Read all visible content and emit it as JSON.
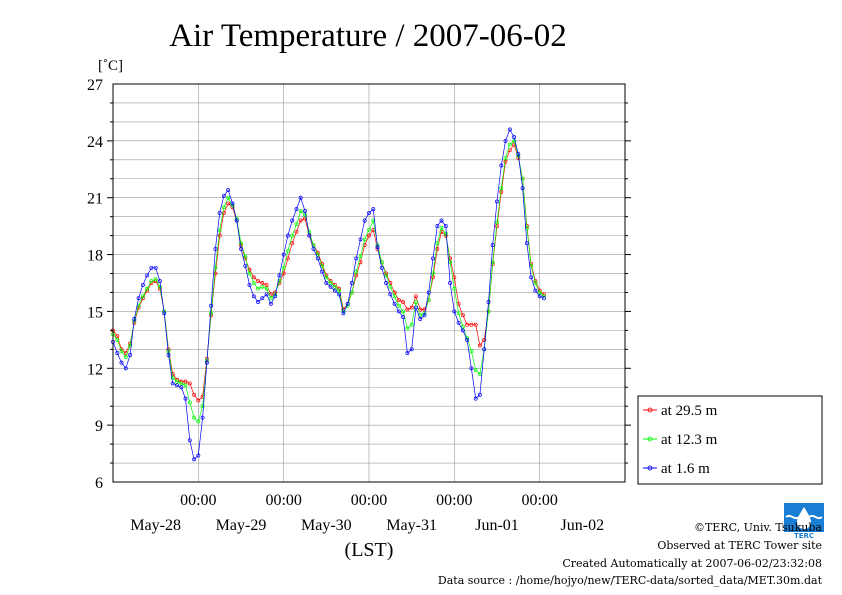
{
  "chart_data": {
    "type": "line",
    "title": "Air Temperature / 2007-06-02",
    "ylabel": "[˚C]",
    "xlabel": "(LST)",
    "ylim": [
      6,
      27
    ],
    "yticks": [
      6,
      9,
      12,
      15,
      18,
      21,
      24,
      27
    ],
    "xlim": [
      0,
      6
    ],
    "day_ticks": [
      {
        "x": 1,
        "time": "00:00"
      },
      {
        "x": 2,
        "time": "00:00"
      },
      {
        "x": 3,
        "time": "00:00"
      },
      {
        "x": 4,
        "time": "00:00"
      },
      {
        "x": 5,
        "time": "00:00"
      }
    ],
    "day_labels": [
      {
        "x": 0.5,
        "label": "May-28"
      },
      {
        "x": 1.5,
        "label": "May-29"
      },
      {
        "x": 2.5,
        "label": "May-30"
      },
      {
        "x": 3.5,
        "label": "May-31"
      },
      {
        "x": 4.5,
        "label": "Jun-01"
      },
      {
        "x": 5.5,
        "label": "Jun-02"
      }
    ],
    "grid": true,
    "legend_position": "right",
    "series": [
      {
        "name": "at 29.5 m",
        "color": "#ff0000",
        "points": [
          [
            0.0,
            14.0
          ],
          [
            0.05,
            13.7
          ],
          [
            0.1,
            13.0
          ],
          [
            0.15,
            12.8
          ],
          [
            0.2,
            13.3
          ],
          [
            0.25,
            14.4
          ],
          [
            0.3,
            15.2
          ],
          [
            0.35,
            15.7
          ],
          [
            0.4,
            16.1
          ],
          [
            0.45,
            16.5
          ],
          [
            0.5,
            16.6
          ],
          [
            0.55,
            16.2
          ],
          [
            0.6,
            15.0
          ],
          [
            0.65,
            13.0
          ],
          [
            0.7,
            11.7
          ],
          [
            0.75,
            11.4
          ],
          [
            0.8,
            11.3
          ],
          [
            0.85,
            11.3
          ],
          [
            0.9,
            11.2
          ],
          [
            0.95,
            10.6
          ],
          [
            1.0,
            10.3
          ],
          [
            1.05,
            10.5
          ],
          [
            1.1,
            12.5
          ],
          [
            1.15,
            14.8
          ],
          [
            1.2,
            17.0
          ],
          [
            1.25,
            19.0
          ],
          [
            1.3,
            20.2
          ],
          [
            1.35,
            20.7
          ],
          [
            1.4,
            20.5
          ],
          [
            1.45,
            19.8
          ],
          [
            1.5,
            18.5
          ],
          [
            1.55,
            17.8
          ],
          [
            1.6,
            17.2
          ],
          [
            1.65,
            16.8
          ],
          [
            1.7,
            16.6
          ],
          [
            1.75,
            16.5
          ],
          [
            1.8,
            16.4
          ],
          [
            1.85,
            15.9
          ],
          [
            1.9,
            16.0
          ],
          [
            1.95,
            16.5
          ],
          [
            2.0,
            17.0
          ],
          [
            2.05,
            17.8
          ],
          [
            2.1,
            18.6
          ],
          [
            2.15,
            19.2
          ],
          [
            2.2,
            19.8
          ],
          [
            2.25,
            19.9
          ],
          [
            2.3,
            19.0
          ],
          [
            2.35,
            18.5
          ],
          [
            2.4,
            18.1
          ],
          [
            2.45,
            17.5
          ],
          [
            2.5,
            16.9
          ],
          [
            2.55,
            16.6
          ],
          [
            2.6,
            16.4
          ],
          [
            2.65,
            16.2
          ],
          [
            2.7,
            15.1
          ],
          [
            2.75,
            15.4
          ],
          [
            2.8,
            16.0
          ],
          [
            2.85,
            16.9
          ],
          [
            2.9,
            17.6
          ],
          [
            2.95,
            18.5
          ],
          [
            3.0,
            19.0
          ],
          [
            3.05,
            19.3
          ],
          [
            3.1,
            18.3
          ],
          [
            3.15,
            17.6
          ],
          [
            3.2,
            17.0
          ],
          [
            3.25,
            16.5
          ],
          [
            3.3,
            16.0
          ],
          [
            3.35,
            15.6
          ],
          [
            3.4,
            15.5
          ],
          [
            3.45,
            15.1
          ],
          [
            3.5,
            15.2
          ],
          [
            3.55,
            15.8
          ],
          [
            3.6,
            15.1
          ],
          [
            3.65,
            15.1
          ],
          [
            3.7,
            15.6
          ],
          [
            3.75,
            16.8
          ],
          [
            3.8,
            18.3
          ],
          [
            3.85,
            19.2
          ],
          [
            3.9,
            19.0
          ],
          [
            3.95,
            17.8
          ],
          [
            4.0,
            16.8
          ],
          [
            4.05,
            15.4
          ],
          [
            4.1,
            14.8
          ],
          [
            4.15,
            14.3
          ],
          [
            4.2,
            14.3
          ],
          [
            4.25,
            14.3
          ],
          [
            4.3,
            13.2
          ],
          [
            4.35,
            13.5
          ],
          [
            4.4,
            15.0
          ],
          [
            4.45,
            17.5
          ],
          [
            4.5,
            19.5
          ],
          [
            4.55,
            21.3
          ],
          [
            4.6,
            22.9
          ],
          [
            4.65,
            23.5
          ],
          [
            4.7,
            23.8
          ],
          [
            4.75,
            23.1
          ],
          [
            4.8,
            22.0
          ],
          [
            4.85,
            19.5
          ],
          [
            4.9,
            17.5
          ],
          [
            4.95,
            16.6
          ],
          [
            5.0,
            16.1
          ],
          [
            5.05,
            15.9
          ]
        ]
      },
      {
        "name": "at 12.3 m",
        "color": "#00ff00",
        "points": [
          [
            0.0,
            13.8
          ],
          [
            0.05,
            13.5
          ],
          [
            0.1,
            12.9
          ],
          [
            0.15,
            12.6
          ],
          [
            0.2,
            13.2
          ],
          [
            0.25,
            14.5
          ],
          [
            0.3,
            15.3
          ],
          [
            0.35,
            15.8
          ],
          [
            0.4,
            16.2
          ],
          [
            0.45,
            16.6
          ],
          [
            0.5,
            16.7
          ],
          [
            0.55,
            16.3
          ],
          [
            0.6,
            15.0
          ],
          [
            0.65,
            12.9
          ],
          [
            0.7,
            11.5
          ],
          [
            0.75,
            11.3
          ],
          [
            0.8,
            11.2
          ],
          [
            0.85,
            11.1
          ],
          [
            0.9,
            10.2
          ],
          [
            0.95,
            9.4
          ],
          [
            1.0,
            9.2
          ],
          [
            1.05,
            10.0
          ],
          [
            1.1,
            12.4
          ],
          [
            1.15,
            14.9
          ],
          [
            1.2,
            17.3
          ],
          [
            1.25,
            19.3
          ],
          [
            1.3,
            20.5
          ],
          [
            1.35,
            21.0
          ],
          [
            1.4,
            20.6
          ],
          [
            1.45,
            19.9
          ],
          [
            1.5,
            18.6
          ],
          [
            1.55,
            17.9
          ],
          [
            1.6,
            17.0
          ],
          [
            1.65,
            16.5
          ],
          [
            1.7,
            16.2
          ],
          [
            1.75,
            16.3
          ],
          [
            1.8,
            16.2
          ],
          [
            1.85,
            15.7
          ],
          [
            1.9,
            15.9
          ],
          [
            1.95,
            16.6
          ],
          [
            2.0,
            17.3
          ],
          [
            2.05,
            18.2
          ],
          [
            2.1,
            19.0
          ],
          [
            2.15,
            19.6
          ],
          [
            2.2,
            20.3
          ],
          [
            2.25,
            20.1
          ],
          [
            2.3,
            19.2
          ],
          [
            2.35,
            18.5
          ],
          [
            2.4,
            18.0
          ],
          [
            2.45,
            17.4
          ],
          [
            2.5,
            16.8
          ],
          [
            2.55,
            16.5
          ],
          [
            2.6,
            16.3
          ],
          [
            2.65,
            16.1
          ],
          [
            2.7,
            15.0
          ],
          [
            2.75,
            15.3
          ],
          [
            2.8,
            16.0
          ],
          [
            2.85,
            17.1
          ],
          [
            2.9,
            17.9
          ],
          [
            2.95,
            18.8
          ],
          [
            3.0,
            19.3
          ],
          [
            3.05,
            19.8
          ],
          [
            3.1,
            18.5
          ],
          [
            3.15,
            17.6
          ],
          [
            3.2,
            16.9
          ],
          [
            3.25,
            16.3
          ],
          [
            3.3,
            15.8
          ],
          [
            3.35,
            15.3
          ],
          [
            3.4,
            15.0
          ],
          [
            3.45,
            14.1
          ],
          [
            3.5,
            14.3
          ],
          [
            3.55,
            15.5
          ],
          [
            3.6,
            14.8
          ],
          [
            3.65,
            14.9
          ],
          [
            3.7,
            15.6
          ],
          [
            3.75,
            17.0
          ],
          [
            3.8,
            18.6
          ],
          [
            3.85,
            19.4
          ],
          [
            3.9,
            19.1
          ],
          [
            3.95,
            17.6
          ],
          [
            4.0,
            16.2
          ],
          [
            4.05,
            14.9
          ],
          [
            4.1,
            14.2
          ],
          [
            4.15,
            13.6
          ],
          [
            4.2,
            12.9
          ],
          [
            4.25,
            11.9
          ],
          [
            4.3,
            11.7
          ],
          [
            4.35,
            13.0
          ],
          [
            4.4,
            15.0
          ],
          [
            4.45,
            17.6
          ],
          [
            4.5,
            19.7
          ],
          [
            4.55,
            21.5
          ],
          [
            4.6,
            23.1
          ],
          [
            4.65,
            23.8
          ],
          [
            4.7,
            24.0
          ],
          [
            4.75,
            23.2
          ],
          [
            4.8,
            22.0
          ],
          [
            4.85,
            19.4
          ],
          [
            4.9,
            17.4
          ],
          [
            4.95,
            16.5
          ],
          [
            5.0,
            16.0
          ],
          [
            5.05,
            15.8
          ]
        ]
      },
      {
        "name": "at 1.6 m",
        "color": "#0000ff",
        "points": [
          [
            0.0,
            13.4
          ],
          [
            0.05,
            12.8
          ],
          [
            0.1,
            12.3
          ],
          [
            0.15,
            12.0
          ],
          [
            0.2,
            12.7
          ],
          [
            0.25,
            14.6
          ],
          [
            0.3,
            15.7
          ],
          [
            0.35,
            16.4
          ],
          [
            0.4,
            16.9
          ],
          [
            0.45,
            17.3
          ],
          [
            0.5,
            17.3
          ],
          [
            0.55,
            16.6
          ],
          [
            0.6,
            14.9
          ],
          [
            0.65,
            12.7
          ],
          [
            0.7,
            11.2
          ],
          [
            0.75,
            11.1
          ],
          [
            0.8,
            11.0
          ],
          [
            0.85,
            10.4
          ],
          [
            0.9,
            8.2
          ],
          [
            0.95,
            7.2
          ],
          [
            1.0,
            7.4
          ],
          [
            1.05,
            9.4
          ],
          [
            1.1,
            12.3
          ],
          [
            1.15,
            15.3
          ],
          [
            1.2,
            18.3
          ],
          [
            1.25,
            20.2
          ],
          [
            1.3,
            21.1
          ],
          [
            1.35,
            21.4
          ],
          [
            1.4,
            20.7
          ],
          [
            1.45,
            19.8
          ],
          [
            1.5,
            18.3
          ],
          [
            1.55,
            17.4
          ],
          [
            1.6,
            16.4
          ],
          [
            1.65,
            15.8
          ],
          [
            1.7,
            15.5
          ],
          [
            1.75,
            15.7
          ],
          [
            1.8,
            15.9
          ],
          [
            1.85,
            15.4
          ],
          [
            1.9,
            15.8
          ],
          [
            1.95,
            16.9
          ],
          [
            2.0,
            18.0
          ],
          [
            2.05,
            19.0
          ],
          [
            2.1,
            19.8
          ],
          [
            2.15,
            20.4
          ],
          [
            2.2,
            21.0
          ],
          [
            2.25,
            20.3
          ],
          [
            2.3,
            19.0
          ],
          [
            2.35,
            18.3
          ],
          [
            2.4,
            17.8
          ],
          [
            2.45,
            17.1
          ],
          [
            2.5,
            16.5
          ],
          [
            2.55,
            16.3
          ],
          [
            2.6,
            16.1
          ],
          [
            2.65,
            15.9
          ],
          [
            2.7,
            14.9
          ],
          [
            2.75,
            15.4
          ],
          [
            2.8,
            16.5
          ],
          [
            2.85,
            17.8
          ],
          [
            2.9,
            18.8
          ],
          [
            2.95,
            19.8
          ],
          [
            3.0,
            20.2
          ],
          [
            3.05,
            20.4
          ],
          [
            3.1,
            18.4
          ],
          [
            3.15,
            17.3
          ],
          [
            3.2,
            16.5
          ],
          [
            3.25,
            15.9
          ],
          [
            3.3,
            15.4
          ],
          [
            3.35,
            15.0
          ],
          [
            3.4,
            14.7
          ],
          [
            3.45,
            12.8
          ],
          [
            3.5,
            13.0
          ],
          [
            3.55,
            15.2
          ],
          [
            3.6,
            14.6
          ],
          [
            3.65,
            14.8
          ],
          [
            3.7,
            16.0
          ],
          [
            3.75,
            17.8
          ],
          [
            3.8,
            19.5
          ],
          [
            3.85,
            19.8
          ],
          [
            3.9,
            19.5
          ],
          [
            3.95,
            16.5
          ],
          [
            4.0,
            15.0
          ],
          [
            4.05,
            14.4
          ],
          [
            4.1,
            14.0
          ],
          [
            4.15,
            13.5
          ],
          [
            4.2,
            12.0
          ],
          [
            4.25,
            10.4
          ],
          [
            4.3,
            10.6
          ],
          [
            4.35,
            13.0
          ],
          [
            4.4,
            15.5
          ],
          [
            4.45,
            18.5
          ],
          [
            4.5,
            20.8
          ],
          [
            4.55,
            22.7
          ],
          [
            4.6,
            24.0
          ],
          [
            4.65,
            24.6
          ],
          [
            4.7,
            24.2
          ],
          [
            4.75,
            23.3
          ],
          [
            4.8,
            21.5
          ],
          [
            4.85,
            18.6
          ],
          [
            4.9,
            16.8
          ],
          [
            4.95,
            16.1
          ],
          [
            5.0,
            15.8
          ],
          [
            5.05,
            15.7
          ]
        ]
      }
    ]
  },
  "credits": {
    "copyright": "©TERC, Univ. Tsukuba",
    "observed": "Observed at TERC Tower site",
    "created": "Created Automatically at 2007-06-02/23:32:08",
    "source": "Data source : /home/hojyo/new/TERC-data/sorted_data/MET.30m.dat",
    "logo_text": "TERC"
  }
}
